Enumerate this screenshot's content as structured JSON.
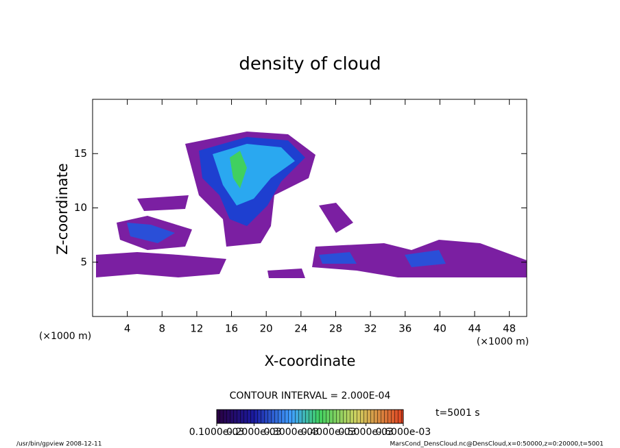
{
  "chart_data": {
    "type": "contour",
    "title": "density of cloud",
    "x_label": "X-coordinate",
    "y_label": "Z-coordinate",
    "x_unit": "(×1000 m)",
    "y_unit": "(×1000 m)",
    "xlim": [
      0,
      50
    ],
    "ylim": [
      0,
      20
    ],
    "xticks": [
      4,
      8,
      12,
      16,
      20,
      24,
      28,
      32,
      36,
      40,
      44,
      48
    ],
    "yticks": [
      5,
      10,
      15
    ],
    "contour_note": "CONTOUR INTERVAL = 2.000E-04",
    "time_label": "t=5001 s",
    "colorbar_lim": [
      0.0001,
      0.0006
    ],
    "colorbar_ticks": [
      {
        "value": 0.0001,
        "label": "0.1000e-03"
      },
      {
        "value": 0.0002,
        "label": "0.2000e-03"
      },
      {
        "value": 0.0003,
        "label": "0.3000e-03"
      },
      {
        "value": 0.0004,
        "label": "0.4000e-03"
      },
      {
        "value": 0.0005,
        "label": "0.5000e-03"
      },
      {
        "value": 0.0006,
        "label": "0.6000e-03"
      }
    ],
    "footer_left": "/usr/bin/gpview  2008-12-11",
    "footer_right": "MarsCond_DensCloud.nc@DensCloud,x=0:50000,z=0:20000,t=5001"
  }
}
